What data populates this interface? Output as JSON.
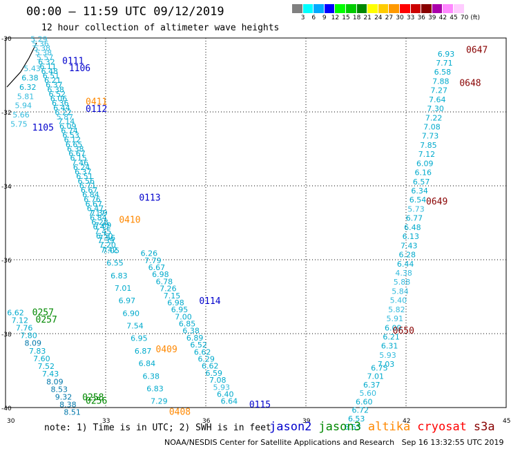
{
  "header": {
    "title": "00:00 – 11:59 UTC 09/12/2019",
    "subtitle": "12 hour collection of altimeter wave heights"
  },
  "colorbar": {
    "colors": [
      "#808080",
      "#00ffff",
      "#00aaff",
      "#0000ff",
      "#00ff00",
      "#00cc00",
      "#008800",
      "#ffff00",
      "#ffcc00",
      "#ff9900",
      "#ff0000",
      "#cc0000",
      "#880000",
      "#aa00aa",
      "#ff88ff",
      "#ffccff"
    ],
    "labels": [
      "3",
      "6",
      "9",
      "12",
      "15",
      "18",
      "21",
      "24",
      "27",
      "30",
      "33",
      "36",
      "39",
      "42",
      "45",
      "70",
      "(ft)"
    ]
  },
  "axes": {
    "lon_ticks": [
      "30",
      "33",
      "36",
      "39",
      "42",
      "45"
    ],
    "lat_ticks": [
      "-30",
      "-32",
      "-34",
      "-36",
      "-38",
      "-40"
    ],
    "lon_range": [
      30,
      45
    ],
    "lat_range": [
      -40,
      -30
    ]
  },
  "satellite_colors": {
    "jason2": "#0000cc",
    "jason3": "#008800",
    "altika": "#ff8800",
    "cryosat": "#ff0000",
    "s3a": "#880000",
    "wave_lt6": "#33bbdd",
    "wave_6_9": "#00aacc",
    "wave_dark": "#0077aa"
  },
  "tracks": [
    {
      "name": "a",
      "lon0": 31.0,
      "lat0": -30.1,
      "lon1": 33.1,
      "lat1": -35.8,
      "values": [
        "5.29",
        "5.36",
        "5.38",
        "5.38",
        "5.57",
        "6.32",
        "6.11",
        "6.48",
        "6.51",
        "6.21",
        "6.37",
        "6.38",
        "6.52",
        "6.06",
        "6.36",
        "6.44",
        "6.22",
        "5.87",
        "7.14",
        "6.09",
        "6.74",
        "6.53",
        "6.12",
        "6.65",
        "6.38",
        "6.67",
        "6.15",
        "7.46",
        "6.24",
        "6.37",
        "6.51",
        "6.56",
        "6.71",
        "6.67",
        "6.84",
        "6.76",
        "6.67",
        "6.47",
        "7.17",
        "6.84",
        "6.28",
        "6.47",
        "7.45",
        "6.50",
        "7.39",
        "7.20",
        "7.42"
      ]
    },
    {
      "name": "b",
      "lon0": 30.8,
      "lat0": -30.9,
      "lon1": 30.4,
      "lat1": -32.4,
      "values": [
        "5.43",
        "6.38",
        "6.32",
        "5.81",
        "5.94",
        "5.66",
        "5.75"
      ]
    },
    {
      "name": "c",
      "lon0": 32.8,
      "lat0": -34.8,
      "lon1": 34.6,
      "lat1": -39.9,
      "values": [
        "7.39",
        "7.69",
        "7.56",
        "7.05",
        "6.55",
        "6.83",
        "7.01",
        "6.97",
        "6.90",
        "7.54",
        "6.95",
        "6.87",
        "6.84",
        "6.38",
        "6.83",
        "7.29"
      ]
    },
    {
      "name": "d",
      "lon0": 34.3,
      "lat0": -35.9,
      "lon1": 36.7,
      "lat1": -39.9,
      "values": [
        "6.26",
        "7.79",
        "6.67",
        "6.98",
        "6.78",
        "7.26",
        "7.15",
        "6.98",
        "6.95",
        "7.00",
        "6.85",
        "6.38",
        "6.89",
        "6.52",
        "6.62",
        "6.29",
        "6.62",
        "6.59",
        "7.08",
        "5.93",
        "6.40",
        "6.64"
      ]
    },
    {
      "name": "e",
      "lon0": 43.2,
      "lat0": -30.5,
      "lon1": 41.4,
      "lat1": -38.9,
      "values": [
        "6.93",
        "7.71",
        "6.58",
        "7.88",
        "7.27",
        "7.64",
        "7.30",
        "7.22",
        "7.08",
        "7.73",
        "7.85",
        "7.12",
        "6.09",
        "6.16",
        "6.57",
        "6.34",
        "6.54",
        "5.73",
        "6.77",
        "6.48",
        "6.13",
        "7.43",
        "6.28",
        "6.44",
        "4.38",
        "5.88",
        "5.84",
        "5.40",
        "5.82",
        "5.91",
        "6.09",
        "6.21",
        "6.31",
        "5.93",
        "7.03"
      ]
    },
    {
      "name": "f",
      "lon0": 41.2,
      "lat0": -39.0,
      "lon1": 40.4,
      "lat1": -40.6,
      "values": [
        "6.75",
        "7.01",
        "6.37",
        "5.60",
        "6.60",
        "6.72",
        "6.53",
        "6.53"
      ]
    },
    {
      "name": "g",
      "lon0": 30.3,
      "lat0": -37.5,
      "lon1": 32.0,
      "lat1": -40.2,
      "values": [
        "6.62",
        "7.12",
        "7.76",
        "7.80",
        "8.09",
        "7.83",
        "7.60",
        "7.52",
        "7.43",
        "8.09",
        "8.53",
        "9.32",
        "8.38",
        "8.51"
      ]
    }
  ],
  "pass_labels": [
    {
      "text": "0111",
      "lon": 31.7,
      "lat": -30.7,
      "sat": "jason2"
    },
    {
      "text": "1106",
      "lon": 31.9,
      "lat": -30.9,
      "sat": "jason2"
    },
    {
      "text": "0411",
      "lon": 32.4,
      "lat": -31.8,
      "sat": "altika"
    },
    {
      "text": "0112",
      "lon": 32.4,
      "lat": -32.0,
      "sat": "jason2"
    },
    {
      "text": "1105",
      "lon": 30.8,
      "lat": -32.5,
      "sat": "jason2"
    },
    {
      "text": "0113",
      "lon": 34.0,
      "lat": -34.4,
      "sat": "jason2"
    },
    {
      "text": "0410",
      "lon": 33.4,
      "lat": -35.0,
      "sat": "altika"
    },
    {
      "text": "0114",
      "lon": 35.8,
      "lat": -37.2,
      "sat": "jason2"
    },
    {
      "text": "0257",
      "lon": 30.8,
      "lat": -37.5,
      "sat": "jason3"
    },
    {
      "text": "0257",
      "lon": 30.9,
      "lat": -37.7,
      "sat": "jason3"
    },
    {
      "text": "0409",
      "lon": 34.5,
      "lat": -38.5,
      "sat": "altika"
    },
    {
      "text": "0258",
      "lon": 32.3,
      "lat": -39.8,
      "sat": "jason3"
    },
    {
      "text": "0256",
      "lon": 32.4,
      "lat": -39.9,
      "sat": "jason3"
    },
    {
      "text": "0408",
      "lon": 34.9,
      "lat": -40.2,
      "sat": "altika"
    },
    {
      "text": "0115",
      "lon": 37.3,
      "lat": -40.0,
      "sat": "jason2"
    },
    {
      "text": "0647",
      "lon": 43.8,
      "lat": -30.4,
      "sat": "s3a"
    },
    {
      "text": "0648",
      "lon": 43.6,
      "lat": -31.3,
      "sat": "s3a"
    },
    {
      "text": "0649",
      "lon": 42.6,
      "lat": -34.5,
      "sat": "s3a"
    },
    {
      "text": "0650",
      "lon": 41.6,
      "lat": -38.0,
      "sat": "s3a"
    }
  ],
  "note": "note: 1) Time is in UTC; 2) SWH is in feet",
  "legend": [
    {
      "text": "jason2",
      "sat": "jason2"
    },
    {
      "text": "jason3",
      "sat": "jason3"
    },
    {
      "text": "altika",
      "sat": "altika"
    },
    {
      "text": "cryosat",
      "sat": "cryosat"
    },
    {
      "text": "s3a",
      "sat": "s3a"
    }
  ],
  "footer": "NOAA/NESDIS Center for Satellite Applications and Research   Sep 16 13:32:55 UTC 2019"
}
